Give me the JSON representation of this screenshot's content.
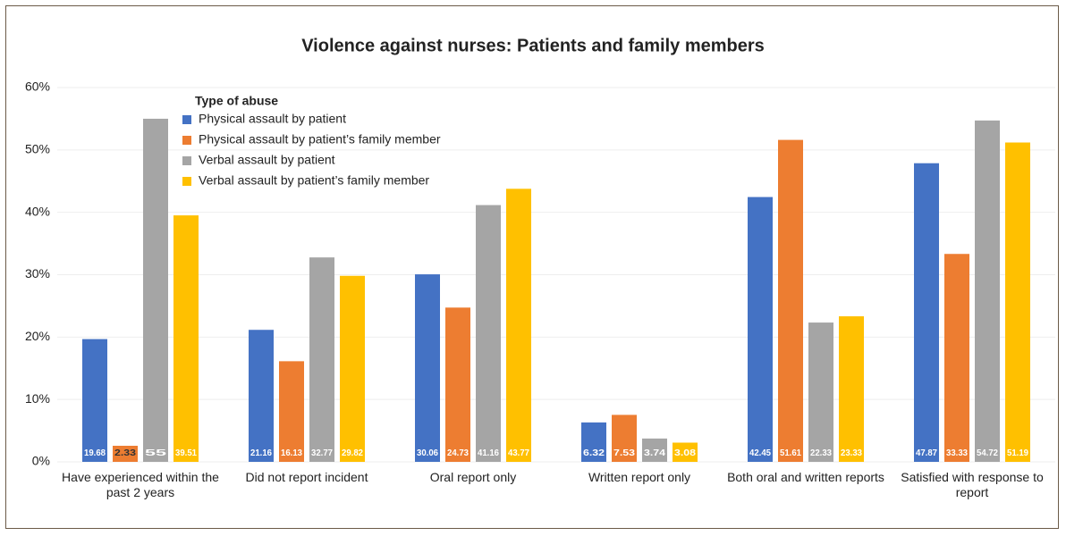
{
  "chart_data": {
    "type": "bar",
    "title": "Violence against nurses: Patients and family members",
    "legend_title": "Type of abuse",
    "categories": [
      "Have experienced within the past 2 years",
      "Did not report incident",
      "Oral report only",
      "Written report only",
      "Both oral and written reports",
      "Satisfied with response to report"
    ],
    "series": [
      {
        "name": "Physical assault by patient",
        "color": "#4472c4",
        "values": [
          19.68,
          21.16,
          30.06,
          6.32,
          42.45,
          47.87
        ]
      },
      {
        "name": "Physical assault by patient’s family member",
        "color": "#ed7d31",
        "values": [
          2.33,
          16.13,
          24.73,
          7.53,
          51.61,
          33.33
        ]
      },
      {
        "name": "Verbal assault by patient",
        "color": "#a5a5a5",
        "values": [
          55,
          32.77,
          41.16,
          3.74,
          22.33,
          54.72
        ]
      },
      {
        "name": "Verbal assault by patient’s family member",
        "color": "#ffc000",
        "values": [
          39.51,
          29.82,
          43.77,
          3.08,
          23.33,
          51.19
        ]
      }
    ],
    "ylim": [
      0,
      60
    ],
    "yticks": [
      {
        "value": 0,
        "label": "0%"
      },
      {
        "value": 10,
        "label": "10%"
      },
      {
        "value": 20,
        "label": "20%"
      },
      {
        "value": 30,
        "label": "30%"
      },
      {
        "value": 40,
        "label": "40%"
      },
      {
        "value": 50,
        "label": "50%"
      },
      {
        "value": 60,
        "label": "60%"
      }
    ],
    "grid": true
  }
}
